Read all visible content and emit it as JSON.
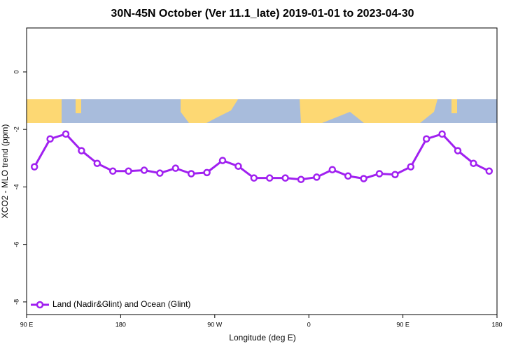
{
  "chart_data": {
    "type": "line",
    "title": "30N-45N October (Ver 11.1_late)   2019-01-01 to 2023-04-30",
    "x_label": "Longitude (deg E)",
    "y_label": "XCO2 - MLO trend (ppm)",
    "x": [
      97.5,
      112.5,
      127.5,
      142.5,
      157.5,
      172.5,
      187.5,
      202.5,
      217.5,
      232.5,
      247.5,
      262.5,
      277.5,
      292.5,
      307.5,
      322.5,
      337.5,
      352.5,
      367.5,
      382.5,
      397.5,
      412.5,
      427.5,
      442.5,
      457.5,
      472.5,
      487.5,
      502.5,
      517.5,
      532.5
    ],
    "series": [
      {
        "name": "Land (Nadir&Glint) and Ocean (Glint)",
        "color": "#a020f0",
        "values": [
          -3.3,
          -2.33,
          -2.16,
          -2.74,
          -3.18,
          -3.45,
          -3.45,
          -3.42,
          -3.52,
          -3.35,
          -3.54,
          -3.5,
          -3.08,
          -3.28,
          -3.69,
          -3.69,
          -3.69,
          -3.74,
          -3.66,
          -3.4,
          -3.62,
          -3.71,
          -3.54,
          -3.57,
          -3.3,
          -2.33,
          -2.16,
          -2.74,
          -3.18,
          -3.45
        ]
      }
    ],
    "xlim": [
      90,
      540
    ],
    "xticks": [
      {
        "value": 90,
        "label": "90 E"
      },
      180,
      {
        "value": 270,
        "label": "90 W"
      },
      {
        "value": 360,
        "label": "0"
      },
      {
        "value": 450,
        "label": "90 E"
      },
      {
        "value": 540,
        "label": "180"
      }
    ],
    "ylim": [
      -8.44,
      1.53
    ],
    "yticks": [
      -8,
      -6,
      -4,
      -2,
      0
    ],
    "legend": "bottom-left"
  }
}
